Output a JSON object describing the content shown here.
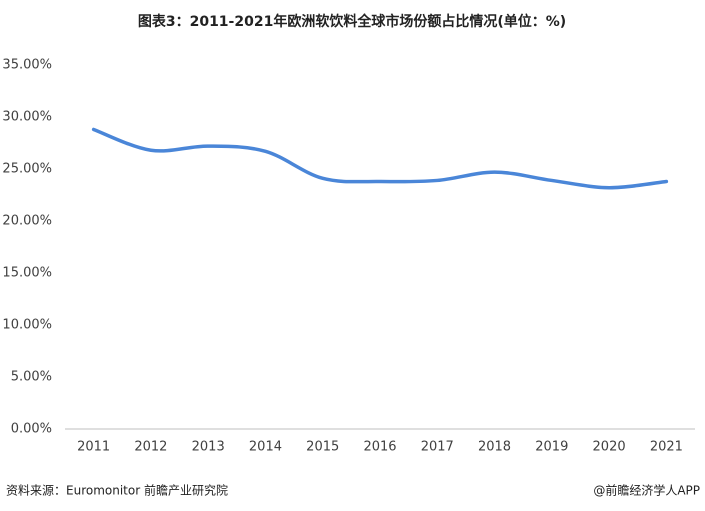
{
  "chart_data": {
    "type": "line",
    "title": "图表3：2011-2021年欧洲软饮料全球市场份额占比情况(单位：%)",
    "categories": [
      "2011",
      "2012",
      "2013",
      "2014",
      "2015",
      "2016",
      "2017",
      "2018",
      "2019",
      "2020",
      "2021"
    ],
    "values": [
      28.8,
      26.8,
      27.2,
      26.7,
      24.1,
      23.8,
      23.9,
      24.7,
      23.9,
      23.2,
      23.8
    ],
    "color": "#4a86d8",
    "ylim": [
      0,
      35
    ],
    "yticks": [
      {
        "value": 0,
        "label": "0.00%"
      },
      {
        "value": 5,
        "label": "5.00%"
      },
      {
        "value": 10,
        "label": "10.00%"
      },
      {
        "value": 15,
        "label": "15.00%"
      },
      {
        "value": 20,
        "label": "20.00%"
      },
      {
        "value": 25,
        "label": "25.00%"
      },
      {
        "value": 30,
        "label": "30.00%"
      },
      {
        "value": 35,
        "label": "35.00%"
      }
    ],
    "grid": false,
    "source": "资料来源：Euromonitor 前瞻产业研究院",
    "credit": "@前瞻经济学人APP"
  }
}
